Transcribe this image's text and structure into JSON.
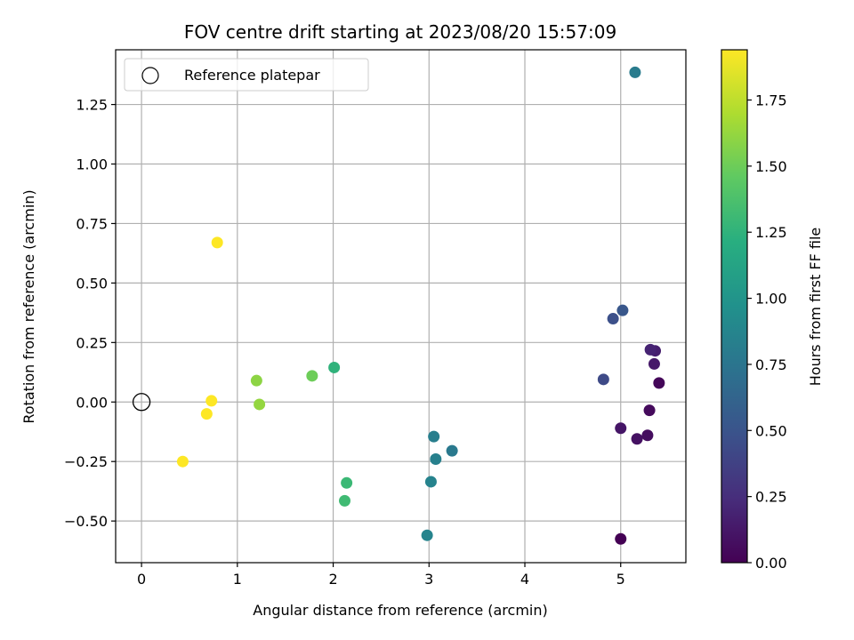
{
  "chart_data": {
    "type": "scatter",
    "title": "FOV centre drift starting at 2023/08/20 15:57:09",
    "xlabel": "Angular distance from reference (arcmin)",
    "ylabel": "Rotation from reference (arcmin)",
    "xlim": [
      -0.27,
      5.68
    ],
    "ylim": [
      -0.675,
      1.48
    ],
    "xticks": [
      0,
      1,
      2,
      3,
      4,
      5
    ],
    "xtick_labels": [
      "0",
      "1",
      "2",
      "3",
      "4",
      "5"
    ],
    "yticks": [
      -0.5,
      -0.25,
      0.0,
      0.25,
      0.5,
      0.75,
      1.0,
      1.25
    ],
    "ytick_labels": [
      "−0.50",
      "−0.25",
      "0.00",
      "0.25",
      "0.50",
      "0.75",
      "1.00",
      "1.25"
    ],
    "grid": true,
    "legend": {
      "placement": "top-left",
      "entries": [
        {
          "label": "Reference platepar",
          "marker": "open-circle"
        }
      ]
    },
    "reference_point": {
      "x": 0,
      "y": 0
    },
    "colorbar": {
      "label": "Hours from first FF file",
      "colormap": "viridis",
      "range": [
        0,
        1.94
      ],
      "ticks": [
        0.0,
        0.25,
        0.5,
        0.75,
        1.0,
        1.25,
        1.5,
        1.75
      ],
      "tick_labels": [
        "0.00",
        "0.25",
        "0.50",
        "0.75",
        "1.00",
        "1.25",
        "1.50",
        "1.75"
      ]
    },
    "points": [
      {
        "x": 5.0,
        "y": -0.575,
        "c": 0.0
      },
      {
        "x": 5.4,
        "y": 0.08,
        "c": 0.03
      },
      {
        "x": 5.3,
        "y": -0.035,
        "c": 0.05
      },
      {
        "x": 5.28,
        "y": -0.14,
        "c": 0.07
      },
      {
        "x": 5.17,
        "y": -0.155,
        "c": 0.09
      },
      {
        "x": 5.0,
        "y": -0.11,
        "c": 0.11
      },
      {
        "x": 5.35,
        "y": 0.16,
        "c": 0.13
      },
      {
        "x": 5.36,
        "y": 0.215,
        "c": 0.16
      },
      {
        "x": 5.31,
        "y": 0.22,
        "c": 0.19
      },
      {
        "x": 4.82,
        "y": 0.095,
        "c": 0.43
      },
      {
        "x": 4.92,
        "y": 0.35,
        "c": 0.47
      },
      {
        "x": 5.02,
        "y": 0.385,
        "c": 0.52
      },
      {
        "x": 5.15,
        "y": 1.385,
        "c": 0.8
      },
      {
        "x": 3.24,
        "y": -0.205,
        "c": 0.78
      },
      {
        "x": 3.05,
        "y": -0.145,
        "c": 0.82
      },
      {
        "x": 3.07,
        "y": -0.24,
        "c": 0.84
      },
      {
        "x": 3.02,
        "y": -0.335,
        "c": 0.86
      },
      {
        "x": 2.98,
        "y": -0.56,
        "c": 0.87
      },
      {
        "x": 2.01,
        "y": 0.145,
        "c": 1.25
      },
      {
        "x": 2.14,
        "y": -0.34,
        "c": 1.3
      },
      {
        "x": 2.12,
        "y": -0.415,
        "c": 1.32
      },
      {
        "x": 1.78,
        "y": 0.11,
        "c": 1.5
      },
      {
        "x": 1.2,
        "y": 0.09,
        "c": 1.6
      },
      {
        "x": 1.23,
        "y": -0.01,
        "c": 1.62
      },
      {
        "x": 0.79,
        "y": 0.67,
        "c": 1.94
      },
      {
        "x": 0.73,
        "y": 0.005,
        "c": 1.94
      },
      {
        "x": 0.68,
        "y": -0.05,
        "c": 1.94
      },
      {
        "x": 0.43,
        "y": -0.25,
        "c": 1.94
      }
    ]
  }
}
